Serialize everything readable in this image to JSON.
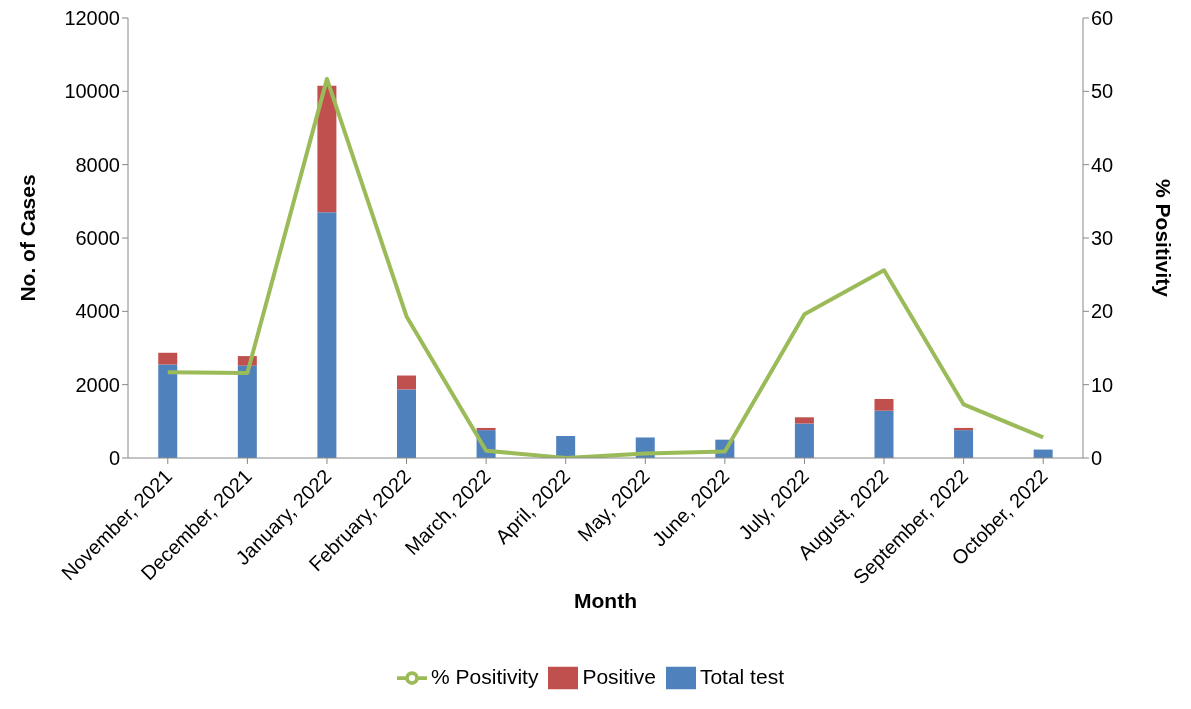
{
  "chart_data": {
    "type": "bar",
    "stacked": true,
    "xlabel": "Month",
    "ylabel": "No. of Cases",
    "y2label": "% Positivity",
    "categories": [
      "November, 2021",
      "December, 2021",
      "January, 2022",
      "February, 2022",
      "March, 2022",
      "April, 2022",
      "May, 2022",
      "June, 2022",
      "July, 2022",
      "August, 2022",
      "September, 2022",
      "October, 2022"
    ],
    "series": [
      {
        "name": "Total test",
        "color": "#4f81bd",
        "values": [
          2550,
          2520,
          6700,
          1870,
          760,
          600,
          560,
          500,
          940,
          1290,
          760,
          230
        ]
      },
      {
        "name": "Positive",
        "color": "#c0504d",
        "values": [
          320,
          260,
          3450,
          380,
          60,
          null,
          null,
          null,
          170,
          320,
          60,
          null
        ]
      },
      {
        "name": "% Positivity",
        "type": "line",
        "axis": "y2",
        "color": "#9bbb59",
        "marker": "none",
        "values": [
          11.7,
          11.6,
          51.7,
          19.3,
          1.0,
          0,
          0.6,
          0.9,
          19.6,
          25.6,
          7.3,
          2.8
        ]
      }
    ],
    "ylim": [
      0,
      12000
    ],
    "yticks": [
      0,
      2000,
      4000,
      6000,
      8000,
      10000,
      12000
    ],
    "y2lim": [
      0,
      60
    ],
    "y2ticks": [
      0,
      10,
      20,
      30,
      40,
      50,
      60
    ],
    "grid": false,
    "legend": "bottom"
  }
}
